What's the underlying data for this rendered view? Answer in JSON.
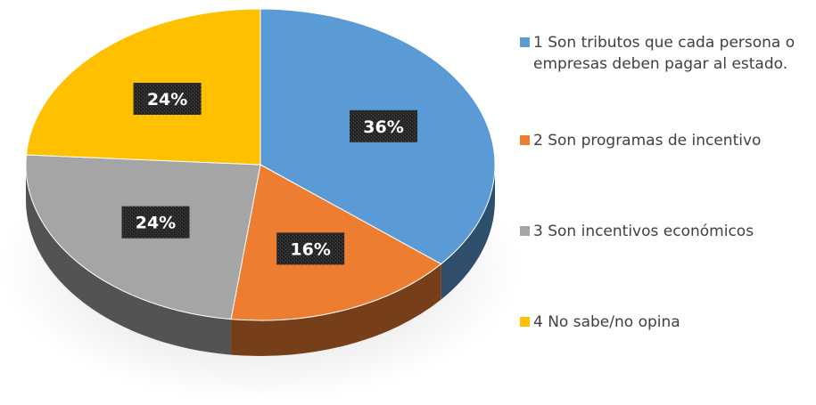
{
  "chart_data": {
    "type": "pie",
    "style": "3d",
    "title": "",
    "categories": [
      "1 Son tributos que cada persona o empresas deben pagar al estado.",
      "2  Son programas de incentivo",
      "3 Son incentivos económicos",
      "4 No sabe/no opina"
    ],
    "values": [
      36,
      16,
      24,
      24
    ],
    "data_labels": [
      "36%",
      "16%",
      "24%",
      "24%"
    ],
    "unit": "%",
    "colors": [
      "#5b9bd5",
      "#ed7d31",
      "#a5a5a5",
      "#ffc000"
    ],
    "legend_position": "right"
  }
}
